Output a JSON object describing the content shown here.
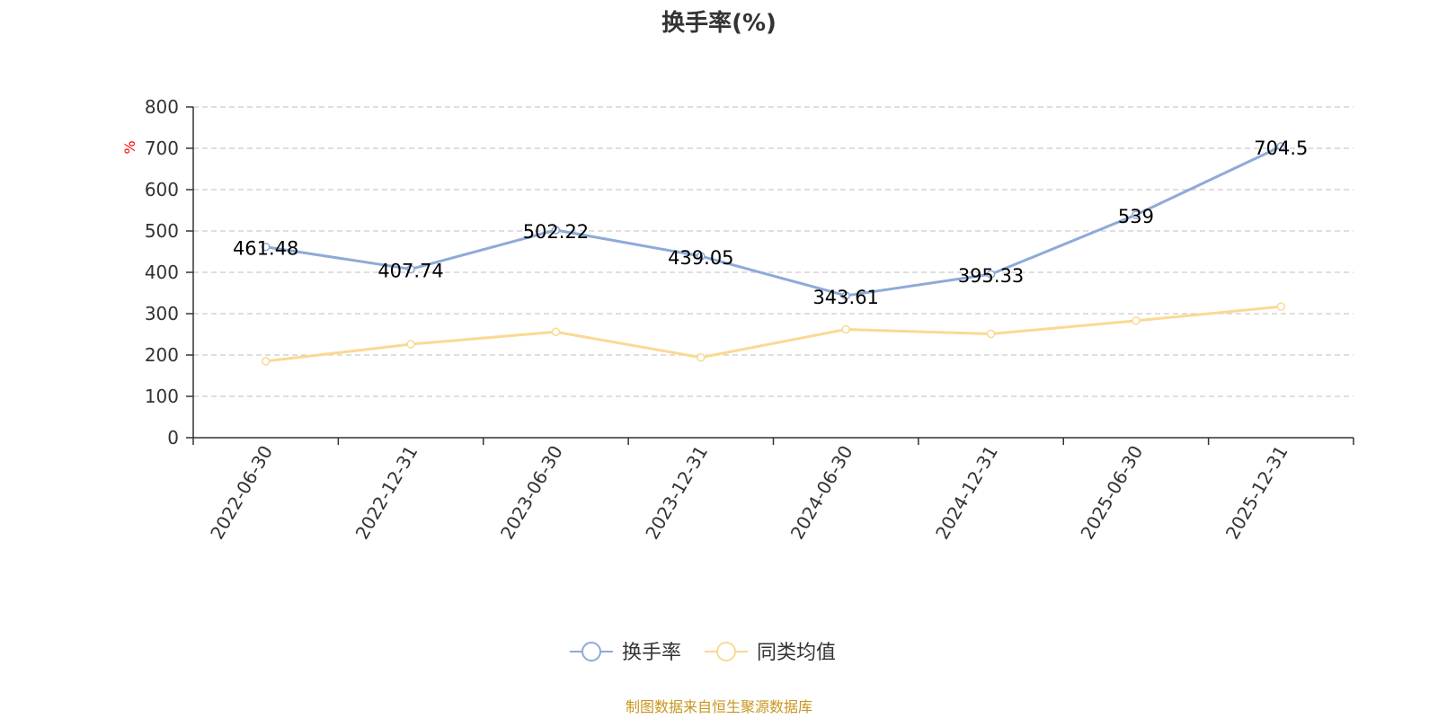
{
  "chart_data": {
    "type": "line",
    "title": "换手率(%)",
    "unit_label": "%",
    "categories": [
      "2022-06-30",
      "2022-12-31",
      "2023-06-30",
      "2023-12-31",
      "2024-06-30",
      "2024-12-31",
      "2025-06-30",
      "2025-12-31"
    ],
    "ylim": [
      0,
      800
    ],
    "yticks": [
      0,
      100,
      200,
      300,
      400,
      500,
      600,
      700,
      800
    ],
    "grid": true,
    "legend_position": "bottom-center",
    "series": [
      {
        "name": "换手率",
        "color": "#8eaad8",
        "values": [
          461.48,
          407.74,
          502.22,
          439.05,
          343.61,
          395.33,
          539,
          704.5
        ],
        "labels": [
          "461.48",
          "407.74",
          "502.22",
          "439.05",
          "343.61",
          "395.33",
          "539",
          "704.5"
        ],
        "show_labels": true
      },
      {
        "name": "同类均值",
        "color": "#fad993",
        "values": [
          185,
          226,
          256,
          194,
          262,
          251,
          283,
          317
        ],
        "show_labels": false
      }
    ],
    "source": "制图数据来自恒生聚源数据库"
  }
}
